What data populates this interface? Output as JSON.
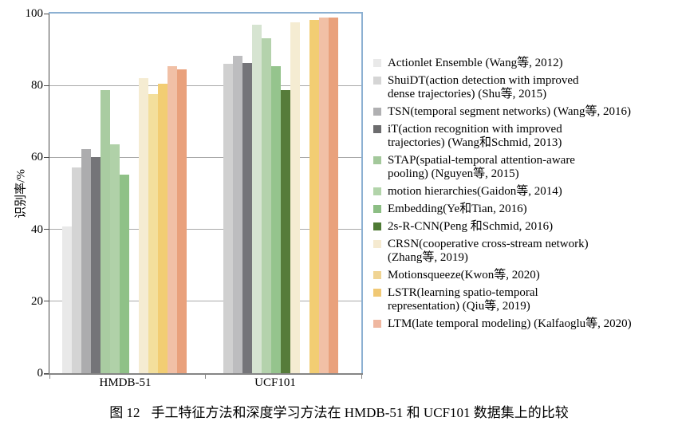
{
  "figure": {
    "caption_label": "图 12",
    "caption_text": "手工特征方法和深度学习方法在 HMDB-51 和 UCF101 数据集上的比较"
  },
  "chart_data": {
    "type": "bar",
    "title": "",
    "xlabel": "",
    "ylabel": "识别率/%",
    "ylim": [
      0,
      100
    ],
    "yticks": [
      100,
      80,
      60,
      40,
      20,
      0
    ],
    "grid": "horizontal",
    "legend_position": "right",
    "plot_border_color": "#8cb0d2",
    "gridline_color": "#a9a9a9",
    "categories": [
      "HMDB-51",
      "UCF101"
    ],
    "series": [
      {
        "name": "Actionlet Ensemble (Wang等, 2012)",
        "legend_color": "#e9e9e9",
        "bar_colors": [
          "#e9e9e9",
          null
        ],
        "values": [
          40.7,
          null
        ],
        "in_legend": true
      },
      {
        "name": "ShuiDT(action detection with improved\ndense trajectories) (Shu等, 2015)",
        "legend_color": "#d5d5d5",
        "bar_colors": [
          "#d4d4d4",
          "#d0d0d0"
        ],
        "values": [
          57.1,
          86.0
        ],
        "in_legend": true
      },
      {
        "name": "TSN(temporal segment networks) (Wang等, 2016)",
        "legend_color": "#b0b0b2",
        "bar_colors": [
          "#acacae",
          "#bdbdbf"
        ],
        "values": [
          62.2,
          88.3
        ],
        "in_legend": true
      },
      {
        "name": "iT(action recognition with improved\ntrajectories) (Wang和Schmid, 2013)",
        "legend_color": "#6c6c6e",
        "bar_colors": [
          "#747478",
          "#757579"
        ],
        "values": [
          60.2,
          86.2
        ],
        "in_legend": true
      },
      {
        "name": "STAP(spatial-temporal attention-aware\npooling) (Nguyen等, 2015)",
        "legend_color": "#a3c89b",
        "bar_colors": [
          "#a9cca1",
          "#d6e4d1"
        ],
        "values": [
          78.7,
          97.0
        ],
        "in_legend": true
      },
      {
        "name": "motion hierarchies(Gaidon等, 2014)",
        "legend_color": "#b2d4aa",
        "bar_colors": [
          "#b0d1a8",
          "#b4d2ac"
        ],
        "values": [
          63.6,
          93.2
        ],
        "in_legend": true
      },
      {
        "name": "Embedding(Ye和Tian, 2016)",
        "legend_color": "#8cbe84",
        "bar_colors": [
          "#8fc187",
          "#95c48d"
        ],
        "values": [
          55.3,
          85.3
        ],
        "in_legend": true
      },
      {
        "name": "2s-R-CNN(Peng 和Schmid, 2016)",
        "legend_color": "#4e7a34",
        "bar_colors": [
          null,
          "#567c3a"
        ],
        "values": [
          null,
          78.7
        ],
        "in_legend": true
      },
      {
        "name": "CRSN(cooperative cross-stream network)\n(Zhang等, 2019)",
        "legend_color": "#f5ead0",
        "bar_colors": [
          "#f5ecd2",
          "#f5ecd2"
        ],
        "values": [
          82.0,
          97.6
        ],
        "in_legend": true
      },
      {
        "name": "Motionsqueeze(Kwon等, 2020)",
        "legend_color": "#f0d493",
        "bar_colors": [
          "#f3df9c",
          null
        ],
        "values": [
          77.5,
          null
        ],
        "in_legend": true
      },
      {
        "name": "LSTR(learning spatio-temporal\nrepresentation) (Qiu等, 2019)",
        "legend_color": "#f0c874",
        "bar_colors": [
          "#f2cd73",
          "#f2cd73"
        ],
        "values": [
          80.6,
          98.3
        ],
        "in_legend": true
      },
      {
        "name": "LTM(late temporal modeling) (Kalfaoglu等, 2020)",
        "legend_color": "#efb7a0",
        "bar_colors": [
          "#f1c0a6",
          "#f1c0a6"
        ],
        "values": [
          85.3,
          98.8
        ],
        "in_legend": true
      },
      {
        "name": "LTM(late temporal modeling) (Kalfaoglu等, 2020)",
        "legend_color": "#e9a17c",
        "bar_colors": [
          "#e9a17c",
          "#e9a17c"
        ],
        "values": [
          84.5,
          98.8
        ],
        "in_legend": false
      }
    ]
  }
}
